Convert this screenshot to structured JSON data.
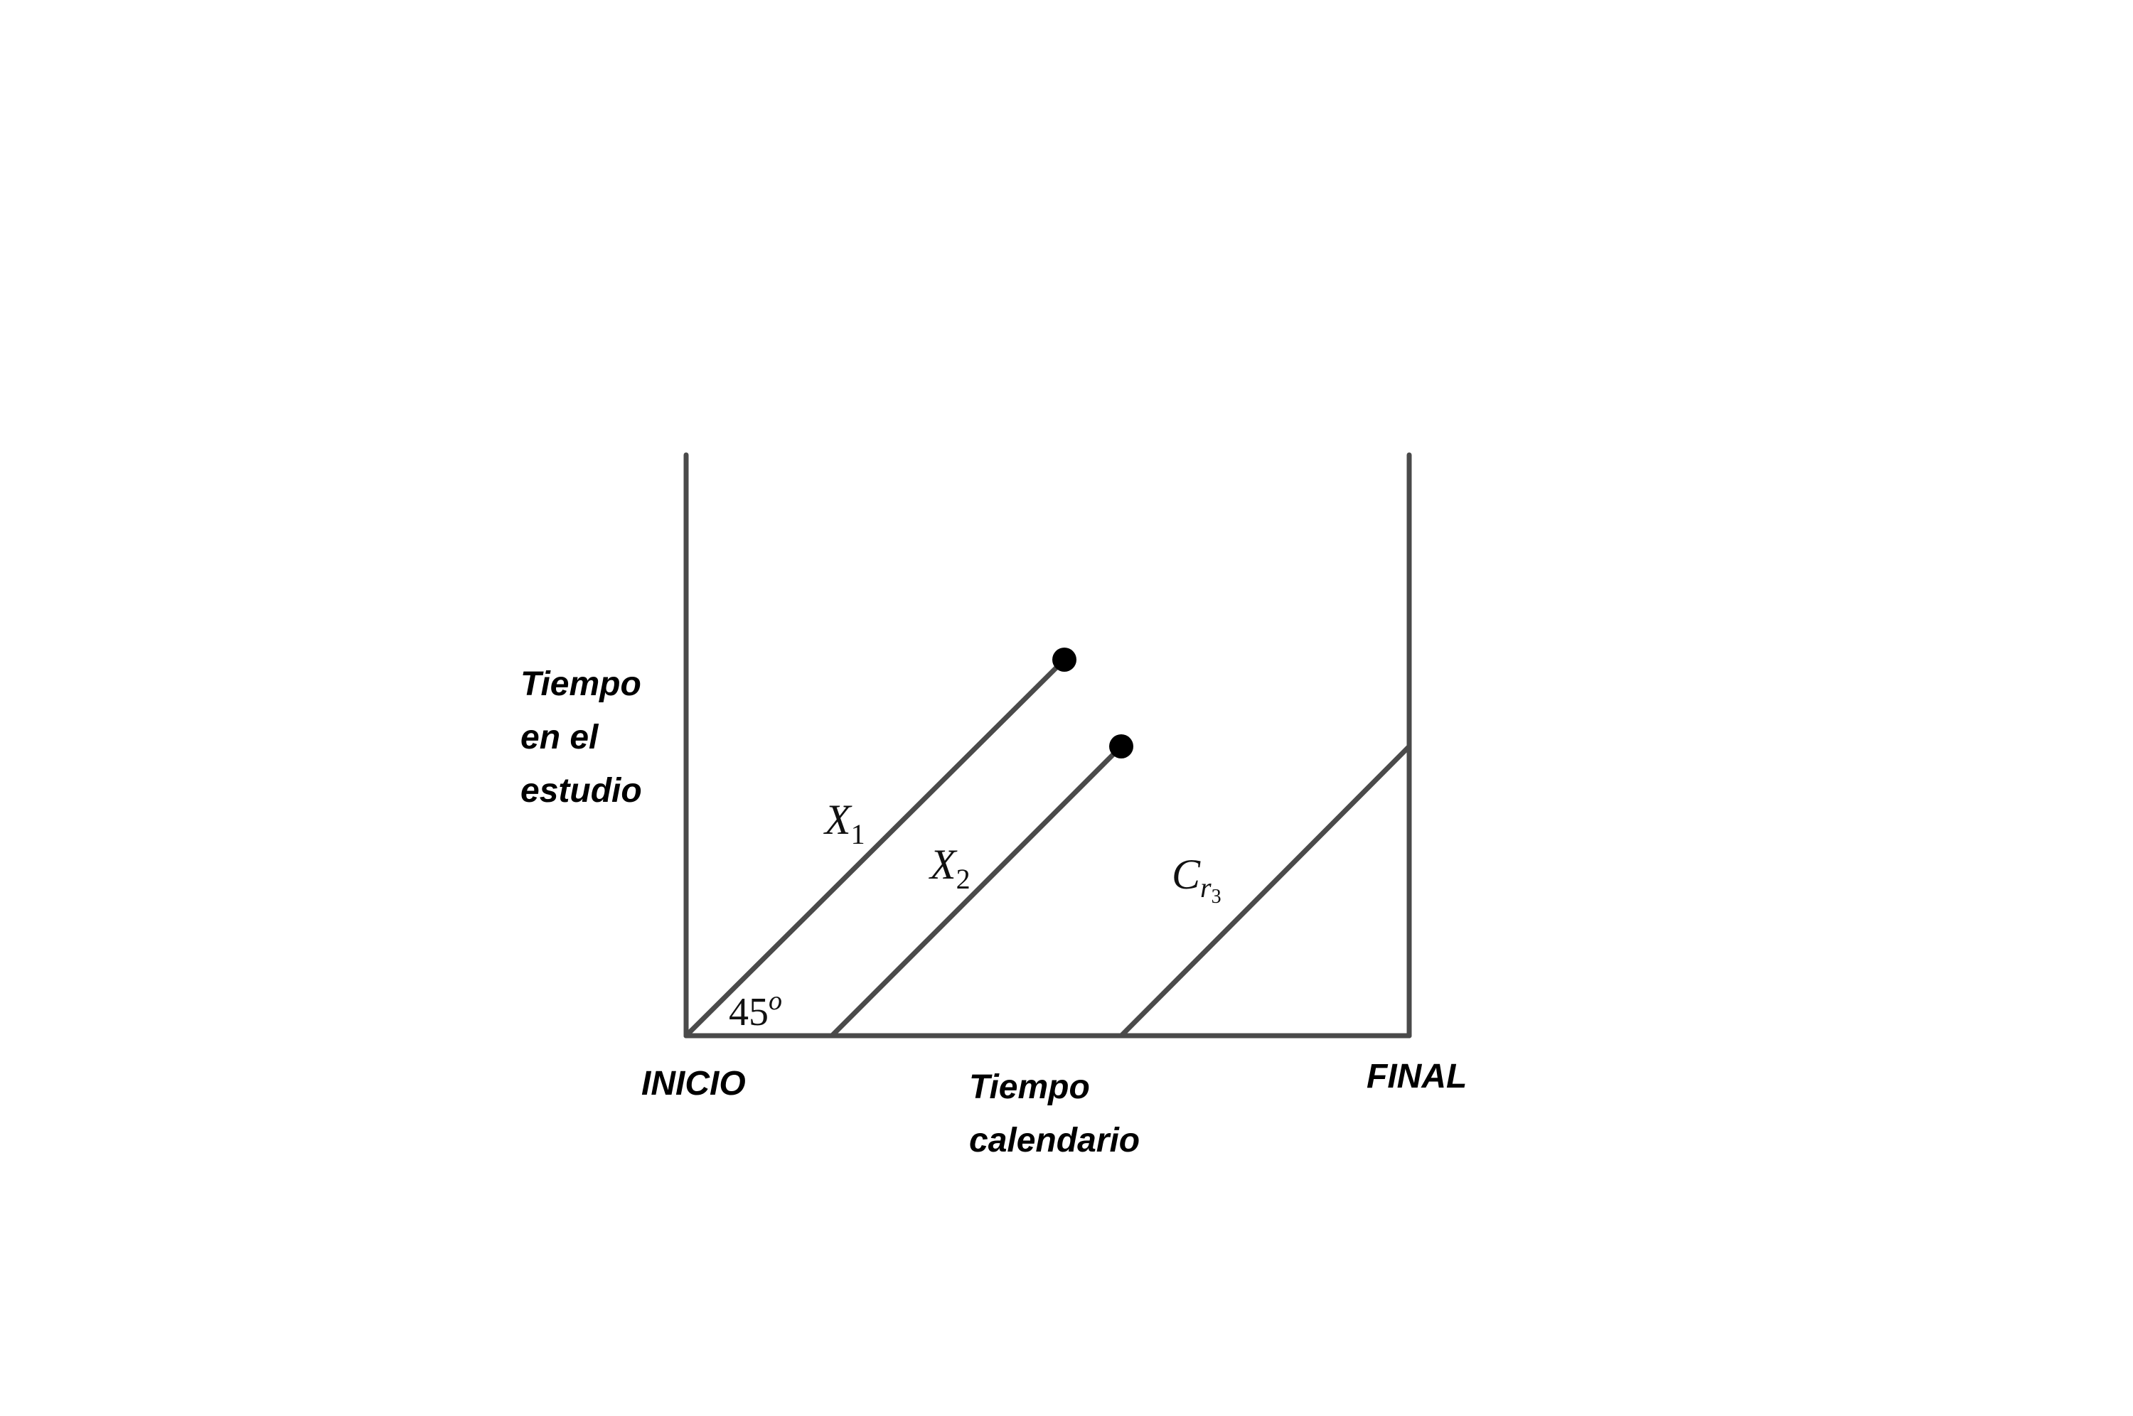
{
  "labels": {
    "y_axis": [
      "Tiempo",
      "en el",
      "estudio"
    ],
    "start": "INICIO",
    "end": "FINAL",
    "x_axis": [
      "Tiempo",
      "calendario"
    ],
    "angle": {
      "base": "45",
      "sup": "o"
    }
  },
  "subjects": [
    {
      "symbol": "X",
      "sub": "1",
      "subsub": "",
      "event": true
    },
    {
      "symbol": "X",
      "sub": "2",
      "subsub": "",
      "event": true
    },
    {
      "symbol": "C",
      "sub": "r",
      "subsub": "3",
      "event": false
    }
  ],
  "colors": {
    "line": "#4a4a4a",
    "event_dot": "#000000"
  }
}
